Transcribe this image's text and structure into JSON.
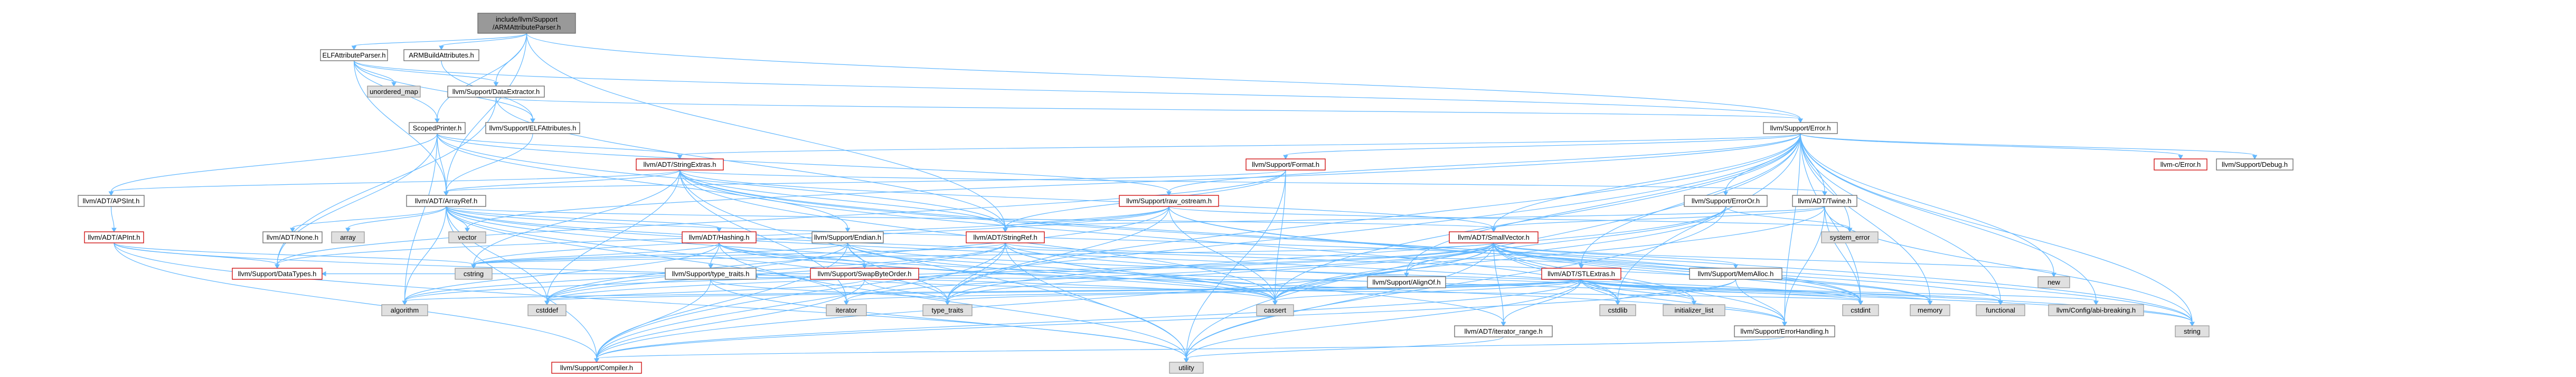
{
  "graph": {
    "title": "include/llvm/Support/ARMAttributeParser.h dependency graph",
    "colors": {
      "edge": "#63b8ff",
      "root_fill": "#999999",
      "file_border": "#666666",
      "red_border": "#cc0000",
      "system_fill": "#e0e0e0",
      "system_border": "#999999"
    },
    "nodes": [
      {
        "id": "root",
        "kind": "root",
        "lines": [
          "include/llvm/Support",
          "/ARMAttributeParser.h"
        ]
      },
      {
        "id": "elfattrparser",
        "kind": "file",
        "lines": [
          "ELFAttributeParser.h"
        ]
      },
      {
        "id": "armbuild",
        "kind": "file",
        "lines": [
          "ARMBuildAttributes.h"
        ]
      },
      {
        "id": "unordered_map",
        "kind": "system",
        "lines": [
          "unordered_map"
        ]
      },
      {
        "id": "dataextractor",
        "kind": "file",
        "lines": [
          "llvm/Support/DataExtractor.h"
        ]
      },
      {
        "id": "scopedprinter",
        "kind": "file",
        "lines": [
          "ScopedPrinter.h"
        ]
      },
      {
        "id": "elfattributes",
        "kind": "file",
        "lines": [
          "llvm/Support/ELFAttributes.h"
        ]
      },
      {
        "id": "error",
        "kind": "file",
        "lines": [
          "llvm/Support/Error.h"
        ]
      },
      {
        "id": "stringextras",
        "kind": "red",
        "lines": [
          "llvm/ADT/StringExtras.h"
        ]
      },
      {
        "id": "format",
        "kind": "red",
        "lines": [
          "llvm/Support/Format.h"
        ]
      },
      {
        "id": "cerror",
        "kind": "red",
        "lines": [
          "llvm-c/Error.h"
        ]
      },
      {
        "id": "debug",
        "kind": "file",
        "lines": [
          "llvm/Support/Debug.h"
        ]
      },
      {
        "id": "apsint",
        "kind": "file",
        "lines": [
          "llvm/ADT/APSInt.h"
        ]
      },
      {
        "id": "arrayref",
        "kind": "file",
        "lines": [
          "llvm/ADT/ArrayRef.h"
        ]
      },
      {
        "id": "rawostream",
        "kind": "red",
        "lines": [
          "llvm/Support/raw_ostream.h"
        ]
      },
      {
        "id": "errororh",
        "kind": "file",
        "lines": [
          "llvm/Support/ErrorOr.h"
        ]
      },
      {
        "id": "twine",
        "kind": "file",
        "lines": [
          "llvm/ADT/Twine.h"
        ]
      },
      {
        "id": "apint",
        "kind": "red",
        "lines": [
          "llvm/ADT/APInt.h"
        ]
      },
      {
        "id": "noneh",
        "kind": "file",
        "lines": [
          "llvm/ADT/None.h"
        ]
      },
      {
        "id": "array",
        "kind": "system",
        "lines": [
          "array"
        ]
      },
      {
        "id": "vector",
        "kind": "system",
        "lines": [
          "vector"
        ]
      },
      {
        "id": "hashing",
        "kind": "red",
        "lines": [
          "llvm/ADT/Hashing.h"
        ]
      },
      {
        "id": "endian",
        "kind": "file",
        "lines": [
          "llvm/Support/Endian.h"
        ]
      },
      {
        "id": "stringref",
        "kind": "red",
        "lines": [
          "llvm/ADT/StringRef.h"
        ]
      },
      {
        "id": "system_error",
        "kind": "system",
        "lines": [
          "system_error"
        ]
      },
      {
        "id": "alignof",
        "kind": "file",
        "lines": [
          "llvm/Support/AlignOf.h"
        ]
      },
      {
        "id": "smallvector",
        "kind": "red",
        "lines": [
          "llvm/ADT/SmallVector.h"
        ]
      },
      {
        "id": "new",
        "kind": "system",
        "lines": [
          "new"
        ]
      },
      {
        "id": "datatypes",
        "kind": "red",
        "lines": [
          "llvm/Support/DataTypes.h"
        ]
      },
      {
        "id": "cstring",
        "kind": "system",
        "lines": [
          "cstring"
        ]
      },
      {
        "id": "typetraitsh",
        "kind": "file",
        "lines": [
          "llvm/Support/type_traits.h"
        ]
      },
      {
        "id": "swapbyteorder",
        "kind": "red",
        "lines": [
          "llvm/Support/SwapByteOrder.h"
        ]
      },
      {
        "id": "stlextras",
        "kind": "red",
        "lines": [
          "llvm/ADT/STLExtras.h"
        ]
      },
      {
        "id": "memalloc",
        "kind": "file",
        "lines": [
          "llvm/Support/MemAlloc.h"
        ]
      },
      {
        "id": "algorithm",
        "kind": "system",
        "lines": [
          "algorithm"
        ]
      },
      {
        "id": "cstddef",
        "kind": "system",
        "lines": [
          "cstddef"
        ]
      },
      {
        "id": "iterator",
        "kind": "system",
        "lines": [
          "iterator"
        ]
      },
      {
        "id": "type_traits",
        "kind": "system",
        "lines": [
          "type_traits"
        ]
      },
      {
        "id": "cassert",
        "kind": "system",
        "lines": [
          "cassert"
        ]
      },
      {
        "id": "iterator_range",
        "kind": "file",
        "lines": [
          "llvm/ADT/iterator_range.h"
        ]
      },
      {
        "id": "cstdlib",
        "kind": "system",
        "lines": [
          "cstdlib"
        ]
      },
      {
        "id": "initializer_list",
        "kind": "system",
        "lines": [
          "initializer_list"
        ]
      },
      {
        "id": "errorhandling",
        "kind": "file",
        "lines": [
          "llvm/Support/ErrorHandling.h"
        ]
      },
      {
        "id": "cstdint",
        "kind": "system",
        "lines": [
          "cstdint"
        ]
      },
      {
        "id": "memory",
        "kind": "system",
        "lines": [
          "memory"
        ]
      },
      {
        "id": "functional",
        "kind": "system",
        "lines": [
          "functional"
        ]
      },
      {
        "id": "configabi",
        "kind": "system",
        "lines": [
          "llvm/Config/abi-breaking.h"
        ]
      },
      {
        "id": "string",
        "kind": "system",
        "lines": [
          "string"
        ]
      },
      {
        "id": "compiler",
        "kind": "red",
        "lines": [
          "llvm/Support/Compiler.h"
        ]
      },
      {
        "id": "utility",
        "kind": "system",
        "lines": [
          "utility"
        ]
      }
    ],
    "edges": [
      [
        "root",
        "elfattrparser"
      ],
      [
        "root",
        "armbuild"
      ],
      [
        "root",
        "scopedprinter"
      ],
      [
        "root",
        "arrayref"
      ],
      [
        "root",
        "error"
      ],
      [
        "root",
        "stringref"
      ],
      [
        "root",
        "dataextractor"
      ],
      [
        "elfattrparser",
        "unordered_map"
      ],
      [
        "elfattrparser",
        "dataextractor"
      ],
      [
        "elfattrparser",
        "elfattributes"
      ],
      [
        "elfattrparser",
        "scopedprinter"
      ],
      [
        "elfattrparser",
        "arrayref"
      ],
      [
        "elfattrparser",
        "error"
      ],
      [
        "armbuild",
        "elfattributes"
      ],
      [
        "dataextractor",
        "error"
      ],
      [
        "dataextractor",
        "stringref"
      ],
      [
        "dataextractor",
        "datatypes"
      ],
      [
        "scopedprinter",
        "apsint"
      ],
      [
        "scopedprinter",
        "arrayref"
      ],
      [
        "scopedprinter",
        "stringextras"
      ],
      [
        "scopedprinter",
        "stringref"
      ],
      [
        "scopedprinter",
        "datatypes"
      ],
      [
        "scopedprinter",
        "endian"
      ],
      [
        "scopedprinter",
        "rawostream"
      ],
      [
        "scopedprinter",
        "algorithm"
      ],
      [
        "elfattributes",
        "arrayref"
      ],
      [
        "error",
        "cerror"
      ],
      [
        "error",
        "debug"
      ],
      [
        "error",
        "format"
      ],
      [
        "error",
        "errororh"
      ],
      [
        "error",
        "twine"
      ],
      [
        "error",
        "stringextras"
      ],
      [
        "error",
        "rawostream"
      ],
      [
        "error",
        "smallvector"
      ],
      [
        "error",
        "stlextras"
      ],
      [
        "error",
        "errorhandling"
      ],
      [
        "error",
        "alignof"
      ],
      [
        "error",
        "compiler"
      ],
      [
        "error",
        "string"
      ],
      [
        "error",
        "system_error"
      ],
      [
        "error",
        "new"
      ],
      [
        "error",
        "utility"
      ],
      [
        "error",
        "memory"
      ],
      [
        "error",
        "cassert"
      ],
      [
        "error",
        "cstdint"
      ],
      [
        "error",
        "cstdlib"
      ],
      [
        "error",
        "functional"
      ],
      [
        "error",
        "configabi"
      ],
      [
        "error",
        "type_traits"
      ],
      [
        "error",
        "vector"
      ],
      [
        "stringextras",
        "apsint"
      ],
      [
        "stringextras",
        "arrayref"
      ],
      [
        "stringextras",
        "smallvector"
      ],
      [
        "stringextras",
        "stringref"
      ],
      [
        "stringextras",
        "twine"
      ],
      [
        "stringextras",
        "iterator"
      ],
      [
        "stringextras",
        "cassert"
      ],
      [
        "stringextras",
        "cstddef"
      ],
      [
        "stringextras",
        "cstdint"
      ],
      [
        "stringextras",
        "cstdlib"
      ],
      [
        "stringextras",
        "cstring"
      ],
      [
        "stringextras",
        "string"
      ],
      [
        "stringextras",
        "utility"
      ],
      [
        "format",
        "arrayref"
      ],
      [
        "format",
        "stringref"
      ],
      [
        "format",
        "datatypes"
      ],
      [
        "format",
        "cassert"
      ],
      [
        "format",
        "cstdio"
      ],
      [
        "format",
        "tuple"
      ],
      [
        "format",
        "utility"
      ],
      [
        "apsint",
        "apint"
      ],
      [
        "arrayref",
        "hashing"
      ],
      [
        "arrayref",
        "noneh"
      ],
      [
        "arrayref",
        "smallvector"
      ],
      [
        "arrayref",
        "stlextras"
      ],
      [
        "arrayref",
        "compiler"
      ],
      [
        "arrayref",
        "algorithm"
      ],
      [
        "arrayref",
        "array"
      ],
      [
        "arrayref",
        "cassert"
      ],
      [
        "arrayref",
        "cstddef"
      ],
      [
        "arrayref",
        "initializer_list"
      ],
      [
        "arrayref",
        "iterator"
      ],
      [
        "arrayref",
        "memory"
      ],
      [
        "arrayref",
        "type_traits"
      ],
      [
        "arrayref",
        "vector"
      ],
      [
        "rawostream",
        "stringref"
      ],
      [
        "rawostream",
        "datatypes"
      ],
      [
        "rawostream",
        "cassert"
      ],
      [
        "rawostream",
        "cstddef"
      ],
      [
        "rawostream",
        "cstdint"
      ],
      [
        "rawostream",
        "cstring"
      ],
      [
        "rawostream",
        "string"
      ],
      [
        "rawostream",
        "system_error"
      ],
      [
        "rawostream",
        "type_traits"
      ],
      [
        "errororh",
        "alignof"
      ],
      [
        "errororh",
        "cassert"
      ],
      [
        "errororh",
        "system_error"
      ],
      [
        "errororh",
        "type_traits"
      ],
      [
        "errororh",
        "utility"
      ],
      [
        "twine",
        "smallvector"
      ],
      [
        "twine",
        "stringref"
      ],
      [
        "twine",
        "errorhandling"
      ],
      [
        "twine",
        "cassert"
      ],
      [
        "twine",
        "cstdint"
      ],
      [
        "twine",
        "string"
      ],
      [
        "apint",
        "compiler"
      ],
      [
        "apint",
        "datatypes"
      ],
      [
        "apint",
        "cassert"
      ],
      [
        "apint",
        "climits"
      ],
      [
        "apint",
        "cstring"
      ],
      [
        "apint",
        "utility"
      ],
      [
        "hashing",
        "errorhandling"
      ],
      [
        "hashing",
        "swapbyteorder"
      ],
      [
        "hashing",
        "typetraitsh"
      ],
      [
        "hashing",
        "algorithm"
      ],
      [
        "hashing",
        "cassert"
      ],
      [
        "hashing",
        "cstring"
      ],
      [
        "hashing",
        "string"
      ],
      [
        "hashing",
        "tuple"
      ],
      [
        "hashing",
        "utility"
      ],
      [
        "endian",
        "compiler"
      ],
      [
        "endian",
        "swapbyteorder"
      ],
      [
        "endian",
        "cassert"
      ],
      [
        "endian",
        "cstddef"
      ],
      [
        "endian",
        "cstdint"
      ],
      [
        "endian",
        "cstring"
      ],
      [
        "endian",
        "type_traits"
      ],
      [
        "stringref",
        "stlextras"
      ],
      [
        "stringref",
        "iterator_range"
      ],
      [
        "stringref",
        "compiler"
      ],
      [
        "stringref",
        "algorithm"
      ],
      [
        "stringref",
        "cassert"
      ],
      [
        "stringref",
        "cstddef"
      ],
      [
        "stringref",
        "cstring"
      ],
      [
        "stringref",
        "limits"
      ],
      [
        "stringref",
        "string"
      ],
      [
        "stringref",
        "type_traits"
      ],
      [
        "stringref",
        "utility"
      ],
      [
        "smallvector",
        "iterator_range"
      ],
      [
        "smallvector",
        "compiler"
      ],
      [
        "smallvector",
        "errorhandling"
      ],
      [
        "smallvector",
        "memalloc"
      ],
      [
        "smallvector",
        "type_traits"
      ],
      [
        "smallvector",
        "algorithm"
      ],
      [
        "smallvector",
        "cassert"
      ],
      [
        "smallvector",
        "cstddef"
      ],
      [
        "smallvector",
        "cstdlib"
      ],
      [
        "smallvector",
        "cstring"
      ],
      [
        "smallvector",
        "functional"
      ],
      [
        "smallvector",
        "initializer_list"
      ],
      [
        "smallvector",
        "iterator"
      ],
      [
        "smallvector",
        "limits"
      ],
      [
        "smallvector",
        "memory"
      ],
      [
        "smallvector",
        "new"
      ],
      [
        "smallvector",
        "utility"
      ],
      [
        "smallvector",
        "cstdint"
      ],
      [
        "alignof",
        "typetraitsh"
      ],
      [
        "typetraitsh",
        "compiler"
      ],
      [
        "typetraitsh",
        "type_traits"
      ],
      [
        "typetraitsh",
        "utility"
      ],
      [
        "swapbyteorder",
        "compiler"
      ],
      [
        "swapbyteorder",
        "datatypes"
      ],
      [
        "swapbyteorder",
        "cstddef"
      ],
      [
        "swapbyteorder",
        "cstdint"
      ],
      [
        "swapbyteorder",
        "type_traits"
      ],
      [
        "stlextras",
        "iterator_range"
      ],
      [
        "stlextras",
        "compiler"
      ],
      [
        "stlextras",
        "errorhandling"
      ],
      [
        "stlextras",
        "configabi"
      ],
      [
        "stlextras",
        "algorithm"
      ],
      [
        "stlextras",
        "cassert"
      ],
      [
        "stlextras",
        "cstddef"
      ],
      [
        "stlextras",
        "cstdint"
      ],
      [
        "stlextras",
        "cstdlib"
      ],
      [
        "stlextras",
        "functional"
      ],
      [
        "stlextras",
        "initializer_list"
      ],
      [
        "stlextras",
        "iterator"
      ],
      [
        "stlextras",
        "memory"
      ],
      [
        "stlextras",
        "tuple"
      ],
      [
        "stlextras",
        "type_traits"
      ],
      [
        "stlextras",
        "utility"
      ],
      [
        "memalloc",
        "compiler"
      ],
      [
        "memalloc",
        "errorhandling"
      ],
      [
        "memalloc",
        "cstdlib"
      ],
      [
        "iterator_range",
        "utility"
      ],
      [
        "errorhandling",
        "compiler"
      ]
    ]
  }
}
